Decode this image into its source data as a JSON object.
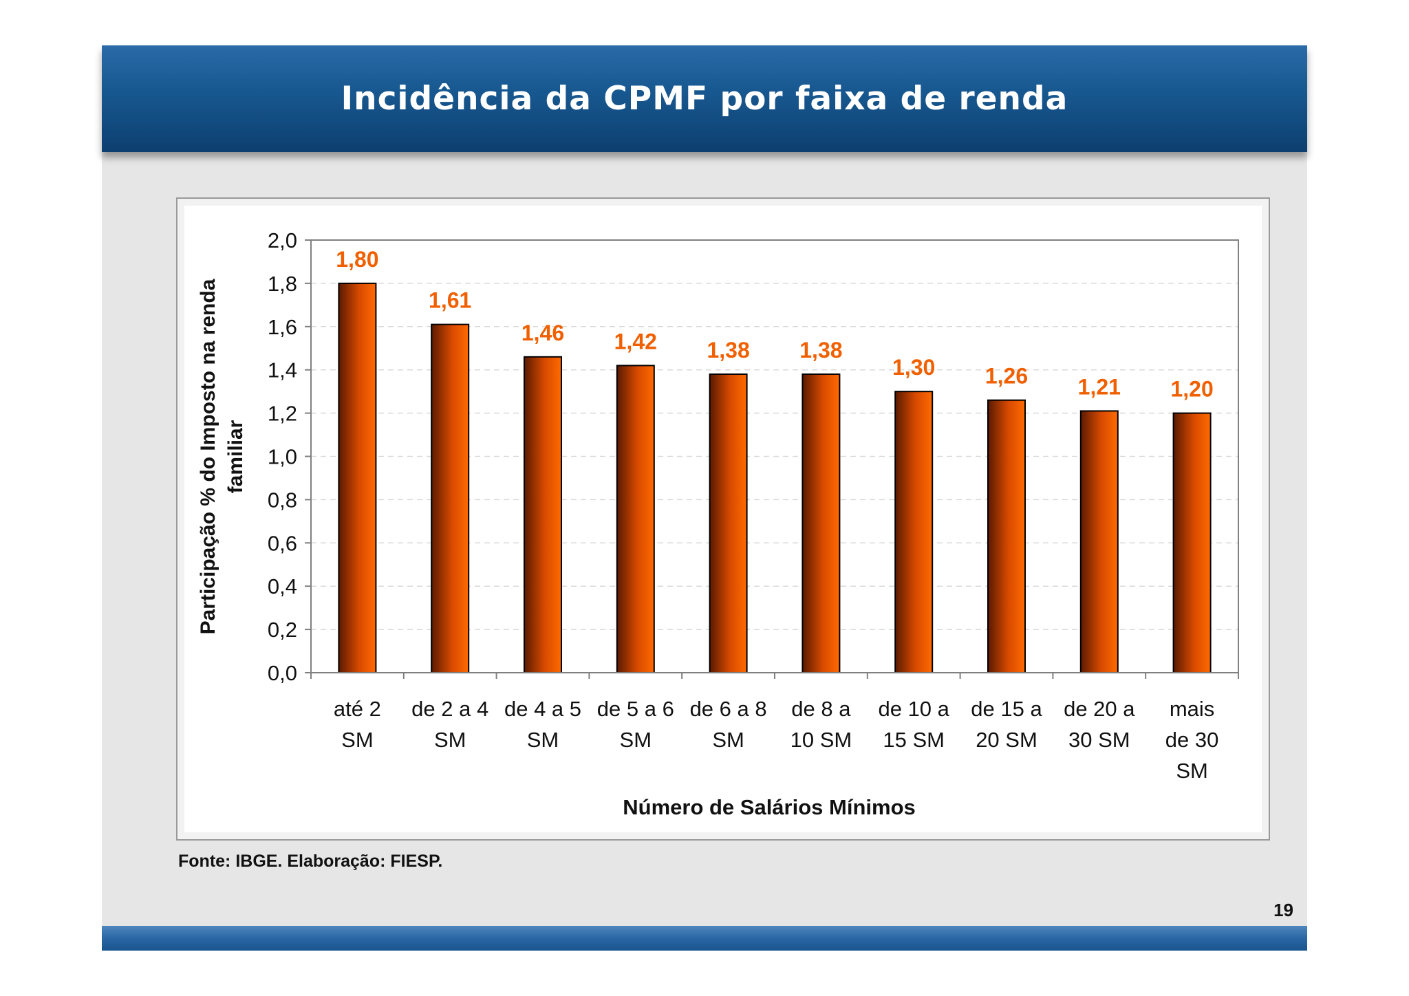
{
  "slide": {
    "title": "Incidência da CPMF por faixa de renda",
    "source": "Fonte: IBGE. Elaboração: FIESP.",
    "page_number": "19"
  },
  "colors": {
    "bar_dark": "#5a1a00",
    "bar_bright": "#ff6a00",
    "value_label": "#f06000",
    "title_bar": "#17578f"
  },
  "chart_data": {
    "type": "bar",
    "title": "",
    "xlabel": "Número de Salários Mínimos",
    "ylabel": "Participação % do Imposto na renda familiar",
    "ylim": [
      0,
      2.0
    ],
    "yticks": [
      "0,0",
      "0,2",
      "0,4",
      "0,6",
      "0,8",
      "1,0",
      "1,2",
      "1,4",
      "1,6",
      "1,8",
      "2,0"
    ],
    "grid": true,
    "categories": [
      [
        "até 2",
        "SM"
      ],
      [
        "de 2 a 4",
        "SM"
      ],
      [
        "de 4 a 5",
        "SM"
      ],
      [
        "de 5 a 6",
        "SM"
      ],
      [
        "de 6 a 8",
        "SM"
      ],
      [
        "de 8 a",
        "10 SM"
      ],
      [
        "de 10 a",
        "15 SM"
      ],
      [
        "de 15 a",
        "20 SM"
      ],
      [
        "de 20 a",
        "30 SM"
      ],
      [
        "mais",
        "de 30",
        "SM"
      ]
    ],
    "values": [
      1.8,
      1.61,
      1.46,
      1.42,
      1.38,
      1.38,
      1.3,
      1.26,
      1.21,
      1.2
    ],
    "value_labels": [
      "1,80",
      "1,61",
      "1,46",
      "1,42",
      "1,38",
      "1,38",
      "1,30",
      "1,26",
      "1,21",
      "1,20"
    ]
  }
}
